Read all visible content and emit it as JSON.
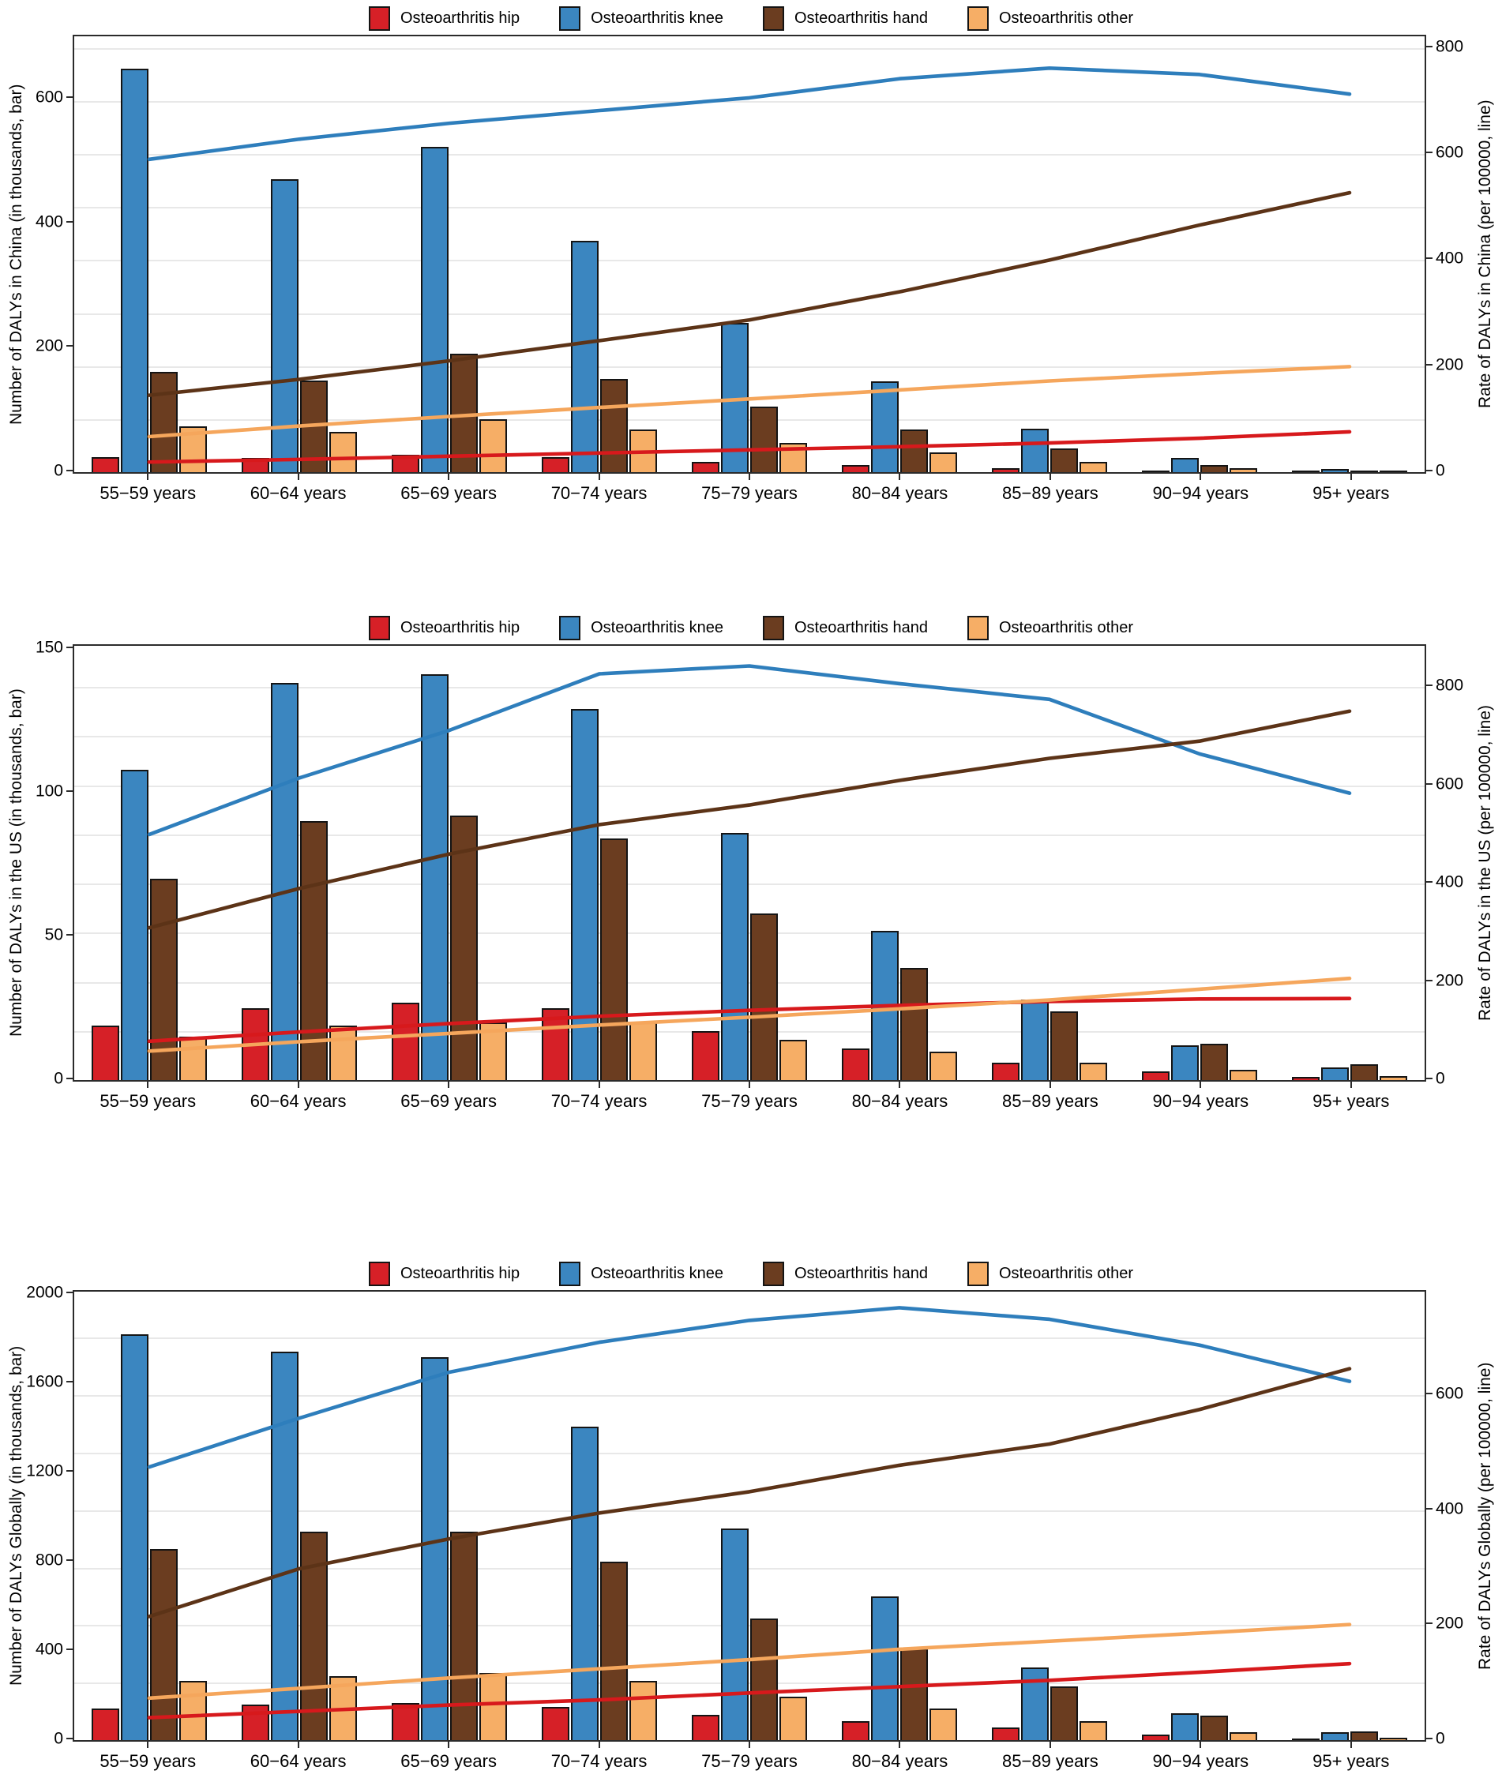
{
  "figure": {
    "legend_items": [
      {
        "label": "Osteoarthritis hip",
        "color": "#d62027"
      },
      {
        "label": "Osteoarthritis knee",
        "color": "#3b86c0"
      },
      {
        "label": "Osteoarthritis hand",
        "color": "#6b3d20"
      },
      {
        "label": "Osteoarthritis other",
        "color": "#f6ae66"
      }
    ],
    "categories": [
      "55−59 years",
      "60−64 years",
      "65−69 years",
      "70−74 years",
      "75−79 years",
      "80−84 years",
      "85−89 years",
      "90−94 years",
      "95+ years"
    ]
  },
  "chart_data": [
    {
      "id": "china",
      "type": "bar+line",
      "left_axis": {
        "label": "Number of DALYs in China (in thousands, bar)",
        "max": 700,
        "ticks": [
          0,
          200,
          400,
          600
        ]
      },
      "right_axis": {
        "label": "Rate of DALYs in China (per 100000, line)",
        "max": 822,
        "ticks": [
          0,
          200,
          400,
          600,
          800
        ],
        "grid_interval": 100
      },
      "bar_series": [
        {
          "name": "Osteoarthritis hip",
          "color": "#d62027",
          "values": [
            24,
            23,
            28,
            24,
            16,
            11,
            6,
            2.5,
            1
          ]
        },
        {
          "name": "Osteoarthritis knee",
          "color": "#3b86c0",
          "values": [
            648,
            470,
            522,
            372,
            240,
            146,
            70,
            23,
            5
          ]
        },
        {
          "name": "Osteoarthritis hand",
          "color": "#6b3d20",
          "values": [
            161,
            147,
            190,
            150,
            105,
            68,
            38,
            12,
            3
          ]
        },
        {
          "name": "Osteoarthritis other",
          "color": "#f6ae66",
          "values": [
            73,
            65,
            85,
            68,
            47,
            32,
            17,
            6,
            2
          ]
        }
      ],
      "line_series": [
        {
          "name": "Osteoarthritis knee",
          "color": "#2e7ebc",
          "values": [
            590,
            628,
            658,
            682,
            706,
            742,
            762,
            750,
            713
          ]
        },
        {
          "name": "Osteoarthritis hip",
          "color": "#d7191c",
          "values": [
            19,
            24,
            30,
            36,
            42,
            48,
            55,
            64,
            76
          ]
        },
        {
          "name": "Osteoarthritis hand",
          "color": "#5c3317",
          "values": [
            145,
            175,
            210,
            248,
            287,
            340,
            400,
            466,
            527
          ]
        },
        {
          "name": "Osteoarthritis other",
          "color": "#f5a65c",
          "values": [
            67,
            87,
            105,
            122,
            138,
            155,
            172,
            186,
            199
          ]
        }
      ]
    },
    {
      "id": "us",
      "type": "bar+line",
      "left_axis": {
        "label": "Number of DALYs in the US (in thousands, bar)",
        "max": 151,
        "ticks": [
          0,
          50,
          100,
          150
        ]
      },
      "right_axis": {
        "label": "Rate of DALYs in the US (per 100000, line)",
        "max": 884,
        "ticks": [
          0,
          200,
          400,
          600,
          800
        ],
        "grid_interval": 100
      },
      "bar_series": [
        {
          "name": "Osteoarthritis hip",
          "color": "#d62027",
          "values": [
            19,
            25,
            27,
            25,
            17,
            11,
            6,
            3,
            1.2
          ]
        },
        {
          "name": "Osteoarthritis knee",
          "color": "#3b86c0",
          "values": [
            108,
            138,
            141,
            129,
            86,
            52,
            28,
            12,
            4.5
          ]
        },
        {
          "name": "Osteoarthritis hand",
          "color": "#6b3d20",
          "values": [
            70,
            90,
            92,
            84,
            58,
            39,
            24,
            12.5,
            5.5
          ]
        },
        {
          "name": "Osteoarthritis other",
          "color": "#f6ae66",
          "values": [
            15,
            19,
            20,
            20,
            14,
            10,
            6,
            3.5,
            1.5
          ]
        }
      ],
      "line_series": [
        {
          "name": "Osteoarthritis knee",
          "color": "#2e7ebc",
          "values": [
            500,
            615,
            712,
            827,
            843,
            807,
            775,
            664,
            584
          ]
        },
        {
          "name": "Osteoarthritis hip",
          "color": "#d7191c",
          "values": [
            79,
            98,
            115,
            130,
            142,
            152,
            160,
            165,
            166
          ]
        },
        {
          "name": "Osteoarthritis hand",
          "color": "#5c3317",
          "values": [
            310,
            390,
            460,
            520,
            560,
            610,
            655,
            690,
            751
          ]
        },
        {
          "name": "Osteoarthritis other",
          "color": "#f5a65c",
          "values": [
            59,
            78,
            95,
            112,
            128,
            145,
            163,
            185,
            207
          ]
        }
      ]
    },
    {
      "id": "global",
      "type": "bar+line",
      "left_axis": {
        "label": "Number of DALYs Globally (in thousands, bar)",
        "max": 2010,
        "ticks": [
          0,
          400,
          800,
          1200,
          1600,
          2000
        ]
      },
      "right_axis": {
        "label": "Rate of DALYs Globally (per 100000, line)",
        "max": 780,
        "ticks": [
          0,
          200,
          400,
          600
        ],
        "grid_interval": 100
      },
      "bar_series": [
        {
          "name": "Osteoarthritis hip",
          "color": "#d62027",
          "values": [
            140,
            158,
            165,
            150,
            115,
            85,
            55,
            25,
            8
          ]
        },
        {
          "name": "Osteoarthritis knee",
          "color": "#3b86c0",
          "values": [
            1820,
            1740,
            1718,
            1405,
            950,
            645,
            325,
            120,
            35
          ]
        },
        {
          "name": "Osteoarthritis hand",
          "color": "#6b3d20",
          "values": [
            855,
            935,
            935,
            800,
            545,
            410,
            240,
            110,
            38
          ]
        },
        {
          "name": "Osteoarthritis other",
          "color": "#f6ae66",
          "values": [
            265,
            285,
            300,
            265,
            195,
            140,
            85,
            35,
            10
          ]
        }
      ],
      "line_series": [
        {
          "name": "Osteoarthritis knee",
          "color": "#2e7ebc",
          "values": [
            475,
            560,
            640,
            692,
            730,
            752,
            732,
            687,
            624
          ]
        },
        {
          "name": "Osteoarthritis hip",
          "color": "#d7191c",
          "values": [
            39,
            50,
            61,
            70,
            82,
            93,
            104,
            118,
            133
          ]
        },
        {
          "name": "Osteoarthritis hand",
          "color": "#5c3317",
          "values": [
            215,
            298,
            350,
            395,
            432,
            478,
            515,
            575,
            646
          ]
        },
        {
          "name": "Osteoarthritis other",
          "color": "#f5a65c",
          "values": [
            73,
            90,
            108,
            124,
            140,
            158,
            172,
            186,
            201
          ]
        }
      ]
    }
  ]
}
